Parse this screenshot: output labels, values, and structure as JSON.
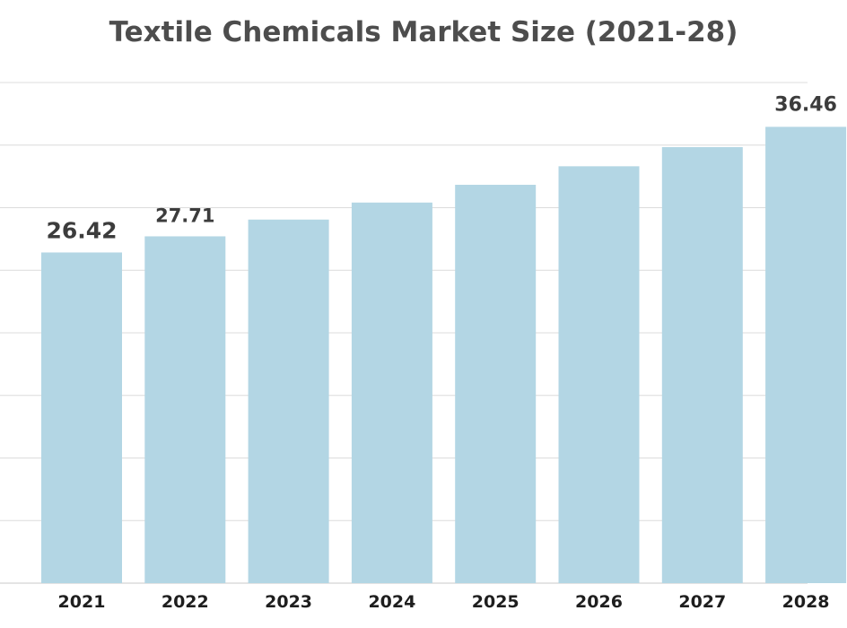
{
  "colors": {
    "bar": "#b3d6e4",
    "title": "#4d4d4d",
    "tick_text": "#1e1e1e",
    "label_text": "#3c3c3c",
    "grid": "#dcdcdc"
  },
  "chart_data": {
    "type": "bar",
    "title": "Textile Chemicals Market Size (2021-28)",
    "xlabel": "",
    "ylabel": "",
    "categories": [
      "2021",
      "2022",
      "2023",
      "2024",
      "2025",
      "2026",
      "2027",
      "2028"
    ],
    "values": [
      26.42,
      27.71,
      29.05,
      30.41,
      31.83,
      33.31,
      34.84,
      36.46
    ],
    "data_labels": [
      "26.42",
      "27.71",
      "",
      "",
      "",
      "",
      "",
      "36.46"
    ],
    "ylim": [
      0,
      40
    ],
    "grid": true,
    "legend": "none"
  }
}
